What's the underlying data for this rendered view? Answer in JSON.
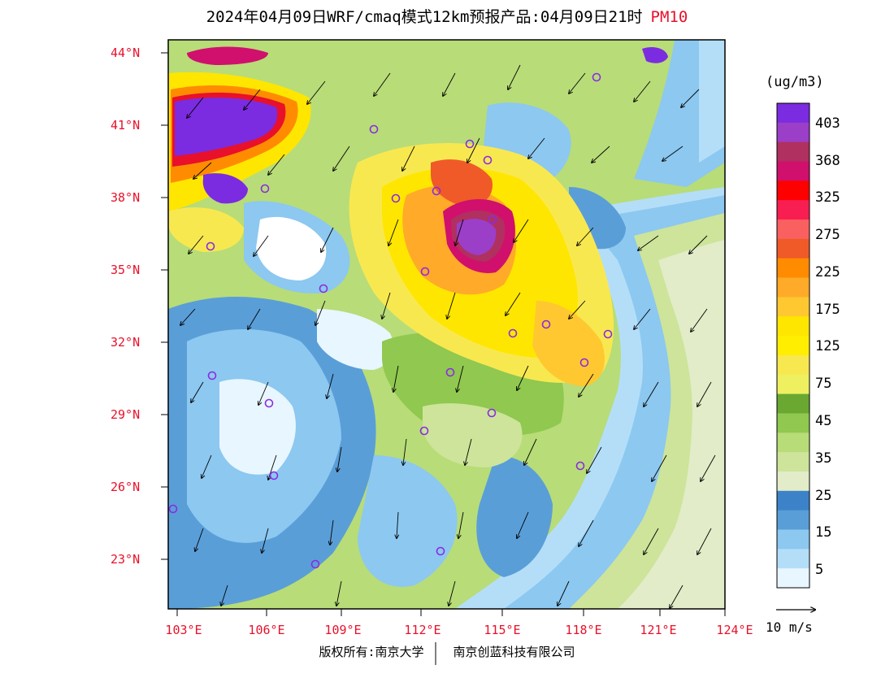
{
  "title": {
    "main": "2024年04月09日WRF/cmaq模式12km预报产品:04月09日21时",
    "variable": "PM10"
  },
  "latitude_labels": [
    "44°N",
    "41°N",
    "38°N",
    "35°N",
    "32°N",
    "29°N",
    "26°N",
    "23°N"
  ],
  "longitude_labels": [
    "103°E",
    "106°E",
    "109°E",
    "112°E",
    "115°E",
    "118°E",
    "121°E",
    "124°E"
  ],
  "colorbar": {
    "unit": "(ug/m3)",
    "labels": [
      "403",
      "368",
      "325",
      "275",
      "225",
      "175",
      "125",
      "75",
      "45",
      "35",
      "25",
      "15",
      "5"
    ],
    "colors": [
      "#7b2ce0",
      "#9b3fc8",
      "#b03060",
      "#d0106c",
      "#ff0000",
      "#f81e52",
      "#fa6060",
      "#f05a28",
      "#ff8c00",
      "#ffaa28",
      "#ffc830",
      "#ffe600",
      "#ffee00",
      "#f8e850",
      "#eef060",
      "#6aa832",
      "#90c850",
      "#b8dc78",
      "#cde49a",
      "#e2ecc8",
      "#3c82c8",
      "#5a9ed8",
      "#8cc8f0",
      "#b4def8",
      "#e8f6ff"
    ]
  },
  "wind_scale": {
    "label": "10 m/s"
  },
  "footer": {
    "copyright": "版权所有:南京大学",
    "company": "南京创蓝科技有限公司"
  }
}
